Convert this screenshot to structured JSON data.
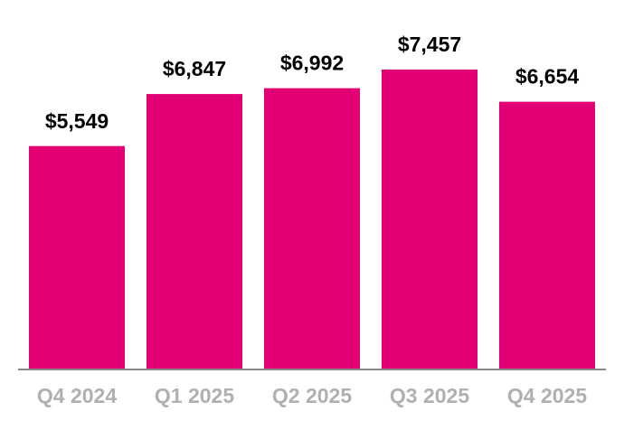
{
  "chart_data": {
    "type": "bar",
    "categories": [
      "Q4 2024",
      "Q1 2025",
      "Q2 2025",
      "Q3 2025",
      "Q4 2025"
    ],
    "values": [
      5549,
      6847,
      6992,
      7457,
      6654
    ],
    "value_labels": [
      "$5,549",
      "$6,847",
      "$6,992",
      "$7,457",
      "$6,654"
    ],
    "color": "#e20074"
  }
}
